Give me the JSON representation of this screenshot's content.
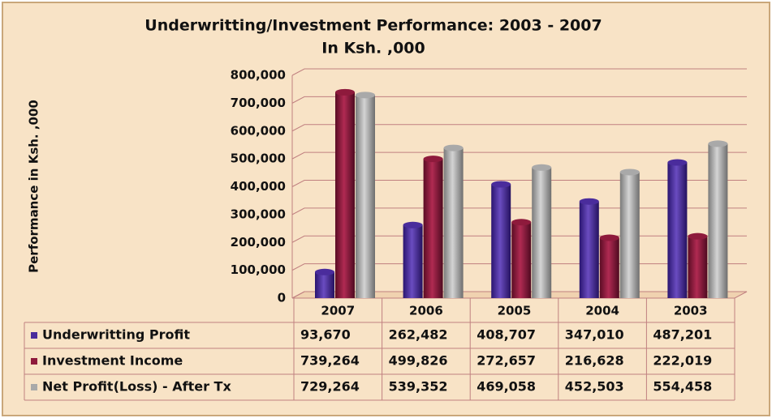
{
  "chart_data": {
    "type": "bar",
    "title": "Underwritting/Investment Performance: 2003 - 2007",
    "subtitle": "In Ksh. ,000",
    "y_label": "Performance in Ksh. ,000",
    "categories": [
      "2007",
      "2006",
      "2005",
      "2004",
      "2003"
    ],
    "series": [
      {
        "name": "Underwritting Profit",
        "color": "#4a2c9c",
        "values": [
          93670,
          262482,
          408707,
          347010,
          487201
        ],
        "value_labels": [
          "93,670",
          "262,482",
          "408,707",
          "347,010",
          "487,201"
        ]
      },
      {
        "name": "Investment Income",
        "color": "#8e1a3c",
        "values": [
          739264,
          499826,
          272657,
          216628,
          222019
        ],
        "value_labels": [
          "739,264",
          "499,826",
          "272,657",
          "216,628",
          "222,019"
        ]
      },
      {
        "name": "Net Profit(Loss) - After Tx",
        "color": "#a9a9a9",
        "values": [
          729264,
          539352,
          469058,
          452503,
          554458
        ],
        "value_labels": [
          "729,264",
          "539,352",
          "469,058",
          "452,503",
          "554,458"
        ]
      }
    ],
    "ylim": [
      0,
      800000
    ],
    "yticks": [
      0,
      {
        "value": 100000,
        "label": "100,000"
      },
      {
        "value": 200000,
        "label": "200,000"
      },
      {
        "value": 300000,
        "label": "300,000"
      },
      {
        "value": 400000,
        "label": "400,000"
      },
      {
        "value": 500000,
        "label": "500,000"
      },
      {
        "value": 600000,
        "label": "600,000"
      },
      {
        "value": 700000,
        "label": "700,000"
      },
      {
        "value": 800000,
        "label": "800,000"
      }
    ],
    "grid": true
  }
}
